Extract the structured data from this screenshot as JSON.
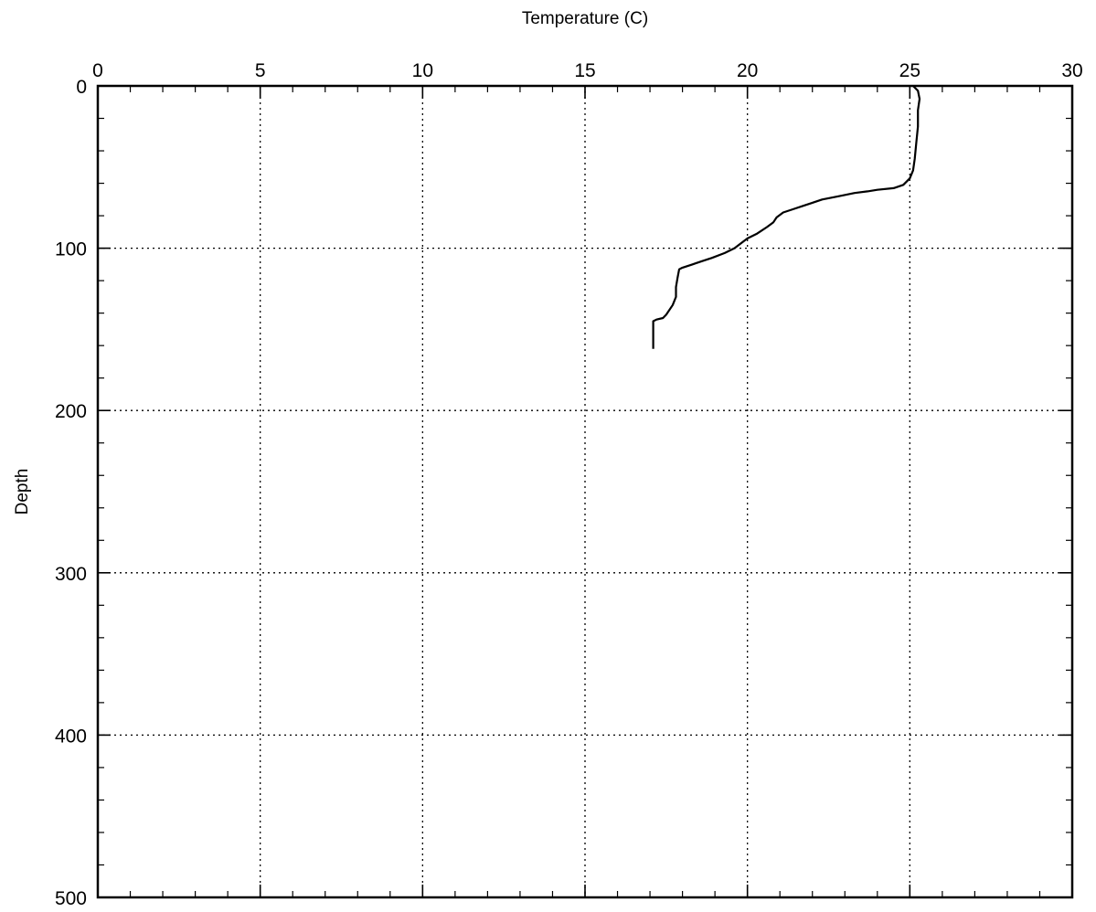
{
  "chart_data": {
    "type": "line",
    "title": "",
    "xlabel": "Temperature (C)",
    "ylabel": "Depth",
    "xlim": [
      0,
      30
    ],
    "ylim": [
      0,
      500
    ],
    "y_inverted": true,
    "x_axis_position": "top",
    "grid": true,
    "grid_style": "dotted",
    "x_ticks": [
      "0",
      "5",
      "10",
      "15",
      "20",
      "25",
      "30"
    ],
    "y_ticks": [
      "0",
      "100",
      "200",
      "300",
      "400",
      "500"
    ],
    "x_minor_tick_step": 1,
    "y_minor_tick_step": 20,
    "line_color": "#000000",
    "series": [
      {
        "x": [
          25.1,
          25.25,
          25.3,
          25.25,
          25.25,
          25.2,
          25.15,
          25.1,
          25.0,
          24.8,
          24.5,
          24.0,
          23.7,
          23.3,
          22.8,
          22.3,
          22.0,
          21.7,
          21.4,
          21.1,
          20.9,
          20.8,
          20.6,
          20.3,
          20.0,
          19.8,
          19.6,
          19.3,
          18.9,
          18.6,
          18.3,
          18.0,
          17.9,
          17.85,
          17.8,
          17.8,
          17.7,
          17.5,
          17.4,
          17.2,
          17.1,
          17.1,
          17.1
        ],
        "y": [
          0,
          3,
          8,
          15,
          25,
          35,
          45,
          52,
          57,
          61,
          63,
          64,
          65,
          66,
          68,
          70,
          72,
          74,
          76,
          78,
          81,
          84,
          87,
          91,
          94,
          97,
          100,
          103,
          106,
          108,
          110,
          112,
          113,
          118,
          124,
          130,
          135,
          141,
          143,
          144,
          145,
          150,
          162
        ]
      }
    ]
  }
}
